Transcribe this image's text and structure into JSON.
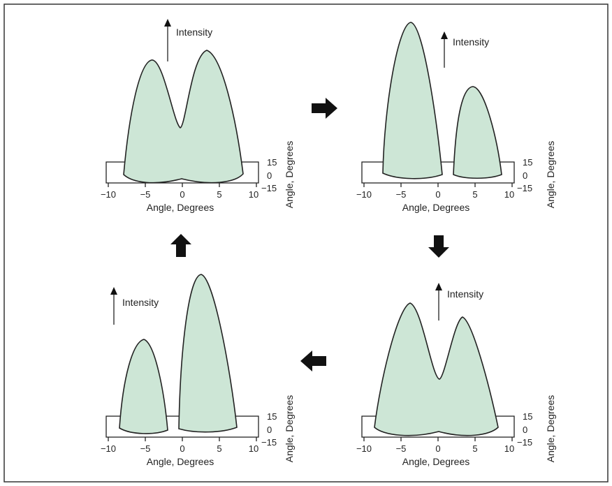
{
  "intensity_label": "Intensity",
  "x_axis_label": "Angle, Degrees",
  "y_axis_label": "Angle, Degrees",
  "x_ticks": [
    "−10",
    "−5",
    "0",
    "5",
    "10"
  ],
  "y_ticks": [
    "15",
    "0",
    "−15"
  ],
  "panels": [
    {
      "id": "top-left",
      "description": "two merged lobes"
    },
    {
      "id": "top-right",
      "description": "two separated lobes, left taller"
    },
    {
      "id": "bottom-right",
      "description": "two merged lobes"
    },
    {
      "id": "bottom-left",
      "description": "two separated lobes, right taller"
    }
  ],
  "flow_arrows": [
    "right",
    "down",
    "left",
    "up"
  ]
}
